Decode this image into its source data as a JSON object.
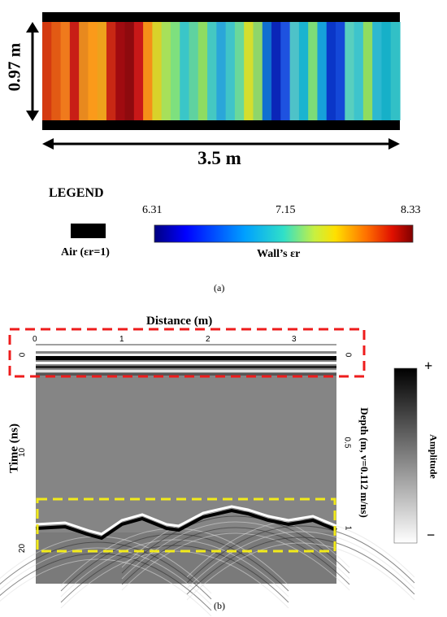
{
  "panel_a": {
    "wall_height_label": "0.97 m",
    "wall_width_label": "3.5 m",
    "legend": {
      "title": "LEGEND",
      "air_label": "Air (εr=1)",
      "air_color": "#000000",
      "colorbar_label": "Wall’s εr",
      "ticks": [
        "6.31",
        "7.15",
        "8.33"
      ]
    },
    "strip_colors": [
      "#d43a10",
      "#e25a14",
      "#f07a1c",
      "#c81e16",
      "#e8891e",
      "#fb9a1a",
      "#eea21c",
      "#c82814",
      "#a00b10",
      "#8e0a0e",
      "#c81818",
      "#f58f18",
      "#d9d22a",
      "#a7e05a",
      "#7ee07e",
      "#3ac6c8",
      "#5fd2a0",
      "#8edc62",
      "#45c8c2",
      "#2aa6d9",
      "#40c4c8",
      "#6ad89a",
      "#d4de2e",
      "#8ed66a",
      "#1070d0",
      "#0a26b8",
      "#1e52e0",
      "#4ec2c8",
      "#1ab4d0",
      "#7cdc78",
      "#16a0da",
      "#0a36c8",
      "#1448d8",
      "#58cfbe",
      "#3ec4cc",
      "#90dc60",
      "#2db8d0",
      "#16b0c8",
      "#32c0c6"
    ],
    "caption": "(a)"
  },
  "panel_b": {
    "x_title": "Distance (m)",
    "x_ticks": [
      "0",
      "1",
      "2",
      "3"
    ],
    "y_title": "Time (ns)",
    "y_ticks": [
      "0",
      "10",
      "20"
    ],
    "depth_title": "Depth (m, v=0.112 m/ns)",
    "depth_ticks": [
      "0",
      "0.5",
      "1"
    ],
    "amplitude_label": "Amplitude",
    "amp_plus": "+",
    "amp_minus": "−",
    "highlight_top_color": "#ee1c1c",
    "highlight_bottom_color": "#f2ea1a",
    "caption": "(b)"
  }
}
